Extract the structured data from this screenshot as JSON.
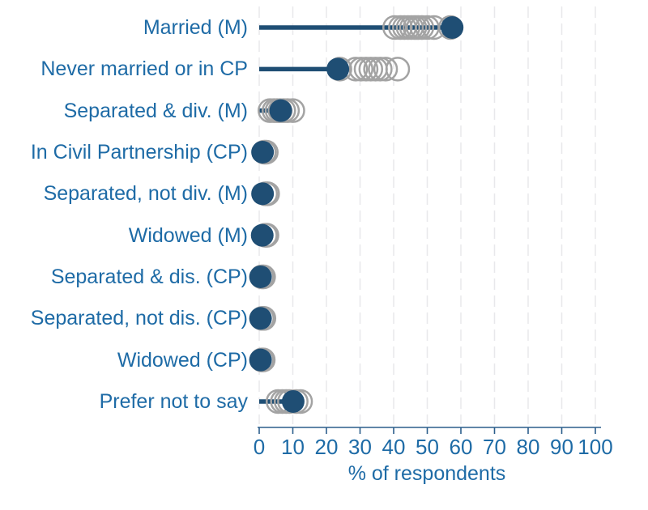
{
  "colors": {
    "selected_dot": "#1f4e74",
    "comparison_ring": "#a3a3a3",
    "stem": "#1f4e74",
    "axis": "#2b5e8c",
    "text_blue": "#1e6ba6",
    "gridline": "#e8e8eb",
    "background": "#ffffff"
  },
  "chart_data": {
    "type": "scatter",
    "subtype": "dot-plot-with-comparison-circles",
    "title": "",
    "xlabel": "% of respondents",
    "ylabel": "",
    "xlim": [
      0,
      100
    ],
    "xticks": [
      0,
      10,
      20,
      30,
      40,
      50,
      60,
      70,
      80,
      90,
      100
    ],
    "grid": "vertical-dashed",
    "legend": "none",
    "categories": [
      "Married (M)",
      "Never married or in CP",
      "Separated & div. (M)",
      "In Civil Partnership (CP)",
      "Separated, not div. (M)",
      "Widowed (M)",
      "Separated & dis. (CP)",
      "Separated, not dis. (CP)",
      "Widowed (CP)",
      "Prefer not to say"
    ],
    "series": [
      {
        "name": "selected-area",
        "marker": "filled-navy-dot",
        "values": [
          57.4,
          23.4,
          6.4,
          1.0,
          1.0,
          0.9,
          0.4,
          0.4,
          0.4,
          10.1
        ]
      },
      {
        "name": "comparison-areas",
        "marker": "open-gray-circle",
        "values_per_category": [
          [
            40.3,
            42.0,
            43.2,
            44.3,
            45.3,
            46.3,
            47.3,
            48.4,
            50.0,
            52.0,
            56.9
          ],
          [
            24.0,
            28.7,
            30.3,
            31.8,
            33.2,
            34.6,
            36.0,
            37.6,
            41.2
          ],
          [
            3.2,
            4.4,
            5.3,
            6.2,
            7.3,
            8.4,
            10.0
          ],
          [
            1.5,
            2.1
          ],
          [
            1.9,
            2.5
          ],
          [
            1.8,
            2.3
          ],
          [
            0.8,
            1.3
          ],
          [
            0.9,
            1.4
          ],
          [
            0.8,
            1.2
          ],
          [
            5.6,
            6.9,
            8.0,
            9.0,
            11.0,
            12.3
          ]
        ]
      }
    ]
  },
  "layout_note": "stem lines run from 0 to the selected navy dot in each row"
}
